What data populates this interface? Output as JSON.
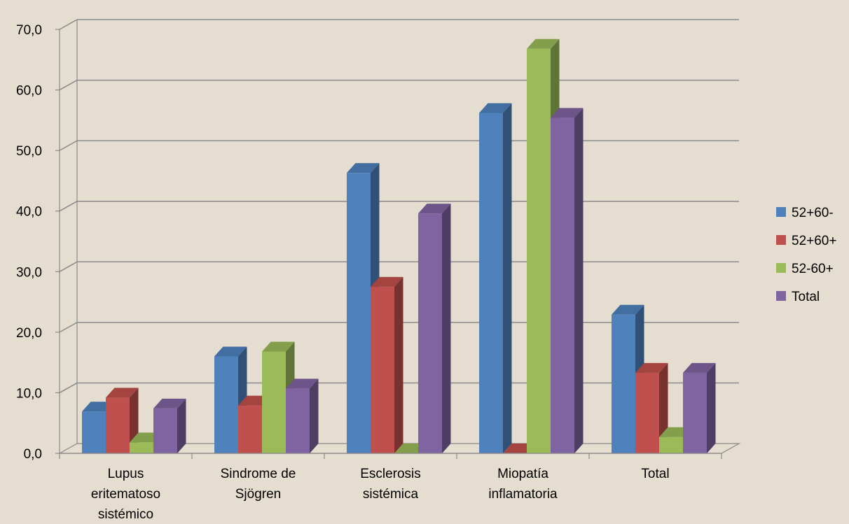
{
  "chart_data": {
    "type": "bar",
    "title": "",
    "xlabel": "",
    "ylabel": "",
    "ylim": [
      0,
      70
    ],
    "yticks": [
      "0,0",
      "10,0",
      "20,0",
      "30,0",
      "40,0",
      "50,0",
      "60,0",
      "70,0"
    ],
    "grid": true,
    "legend_position": "right",
    "categories": [
      [
        "Lupus",
        "eritematoso",
        "sistémico"
      ],
      [
        "Sindrome de",
        "Sjögren"
      ],
      [
        "Esclerosis",
        "sistémica"
      ],
      [
        "Miopatía",
        "inflamatoria"
      ],
      [
        "Total"
      ]
    ],
    "series": [
      {
        "name": "52+60-",
        "color": "#4f81bd",
        "values": [
          6.9,
          16.0,
          46.3,
          56.2,
          22.9
        ]
      },
      {
        "name": "52+60+",
        "color": "#c0504d",
        "values": [
          9.2,
          7.9,
          27.5,
          0.0,
          13.3
        ]
      },
      {
        "name": "52-60+",
        "color": "#9bbb59",
        "values": [
          1.8,
          16.8,
          0.0,
          66.8,
          2.7
        ]
      },
      {
        "name": "Total",
        "color": "#8064a2",
        "values": [
          7.4,
          10.7,
          39.6,
          55.4,
          13.3
        ]
      }
    ]
  }
}
